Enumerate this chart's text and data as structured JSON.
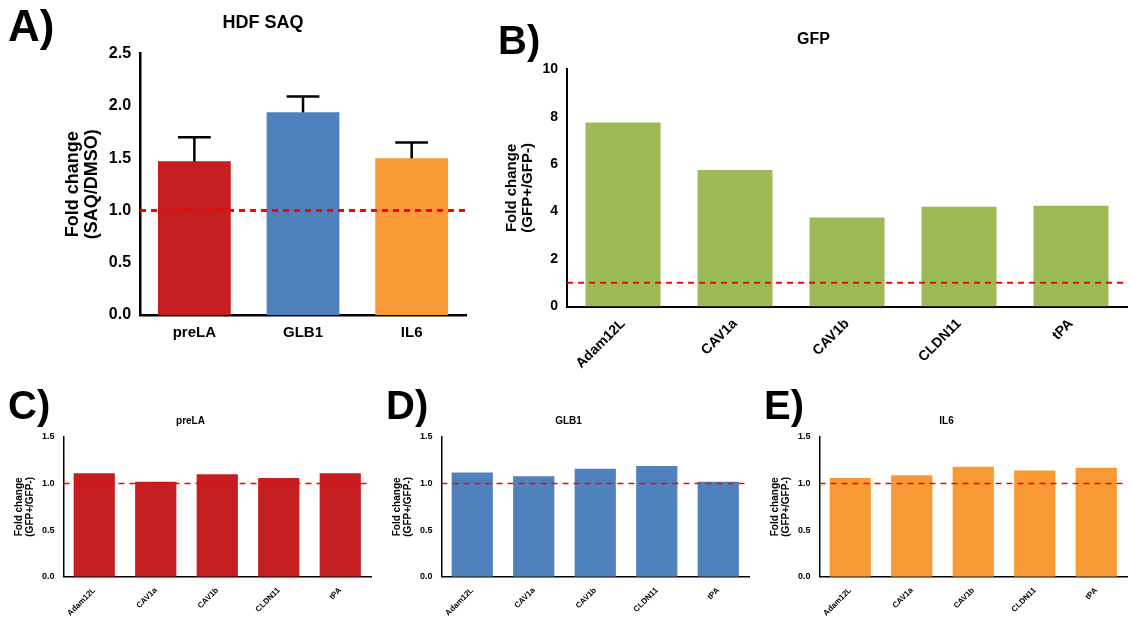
{
  "chart_data": [
    {
      "type": "bar",
      "title": "HDF SAQ",
      "ylabel": "Fold change\n(SAQ/DMSO)",
      "annotations": [
        "A)"
      ],
      "categories": [
        "preLA",
        "GLB1",
        "IL6"
      ],
      "values": [
        1.47,
        1.94,
        1.5
      ],
      "colors": [
        "#c41e20",
        "#4f81bd",
        "#f79a36"
      ],
      "errors": [
        0.23,
        0.15,
        0.15
      ],
      "ylim": [
        0,
        2.5
      ],
      "yticks": [
        {
          "value": 0,
          "label": "0.0"
        },
        {
          "value": 0.5,
          "label": "0.5"
        },
        {
          "value": 1,
          "label": "1.0"
        },
        {
          "value": 1.5,
          "label": "1.5"
        },
        {
          "value": 2,
          "label": "2.0"
        },
        {
          "value": 2.5,
          "label": "2.5"
        }
      ],
      "ref_lines": [
        {
          "axis": "y",
          "value": 1,
          "color": "#ff0000",
          "line_style": "dashed"
        }
      ]
    },
    {
      "type": "bar",
      "title": "GFP",
      "ylabel": "Fold change\n(GFP+/GFP-)",
      "annotations": [
        "B)"
      ],
      "categories": [
        "Adam12L",
        "CAV1a",
        "CAV1b",
        "CLDN11",
        "tPA"
      ],
      "values": [
        7.75,
        5.75,
        3.75,
        4.2,
        4.25
      ],
      "color": "#9bbb59",
      "ylim": [
        0,
        10
      ],
      "yticks": [
        0,
        2,
        4,
        6,
        8,
        10
      ],
      "ref_lines": [
        {
          "axis": "y",
          "value": 1,
          "color": "#ff0000",
          "line_style": "dashed"
        }
      ]
    },
    {
      "type": "bar",
      "title": "preLA",
      "ylabel": "Fold change\n(GFP+/GFP-)",
      "annotations": [
        "C)"
      ],
      "categories": [
        "Adam12L",
        "CAV1a",
        "CAV1b",
        "CLDN11",
        "tPA"
      ],
      "values": [
        1.11,
        1.02,
        1.1,
        1.06,
        1.11
      ],
      "color": "#c41e20",
      "ylim": [
        0,
        1.5
      ],
      "yticks": [
        {
          "value": 0,
          "label": "0.0"
        },
        {
          "value": 0.5,
          "label": "0.5"
        },
        {
          "value": 1,
          "label": "1.0"
        },
        {
          "value": 1.5,
          "label": "1.5"
        }
      ],
      "ref_lines": [
        {
          "axis": "y",
          "value": 1,
          "color": "#ff0000",
          "line_style": "dashed"
        }
      ]
    },
    {
      "type": "bar",
      "title": "GLB1",
      "ylabel": "Fold change\n(GFP+/GFP-)",
      "annotations": [
        "D)"
      ],
      "categories": [
        "Adam12L",
        "CAV1a",
        "CAV1b",
        "CLDN11",
        "tPA"
      ],
      "values": [
        1.12,
        1.08,
        1.16,
        1.19,
        1.02
      ],
      "color": "#4f81bd",
      "ylim": [
        0,
        1.5
      ],
      "yticks": [
        {
          "value": 0,
          "label": "0.0"
        },
        {
          "value": 0.5,
          "label": "0.5"
        },
        {
          "value": 1,
          "label": "1.0"
        },
        {
          "value": 1.5,
          "label": "1.5"
        }
      ],
      "ref_lines": [
        {
          "axis": "y",
          "value": 1,
          "color": "#ff0000",
          "line_style": "dashed"
        }
      ]
    },
    {
      "type": "bar",
      "title": "IL6",
      "ylabel": "Fold change\n(GFP+/GFP-)",
      "annotations": [
        "E)"
      ],
      "categories": [
        "Adam12L",
        "CAV1a",
        "CAV1b",
        "CLDN11",
        "tPA"
      ],
      "values": [
        1.06,
        1.09,
        1.18,
        1.14,
        1.17
      ],
      "color": "#f79a36",
      "ylim": [
        0,
        1.5
      ],
      "yticks": [
        {
          "value": 0,
          "label": "0.0"
        },
        {
          "value": 0.5,
          "label": "0.5"
        },
        {
          "value": 1,
          "label": "1.0"
        },
        {
          "value": 1.5,
          "label": "1.5"
        }
      ],
      "ref_lines": [
        {
          "axis": "y",
          "value": 1,
          "color": "#ff0000",
          "line_style": "dashed"
        }
      ]
    }
  ]
}
